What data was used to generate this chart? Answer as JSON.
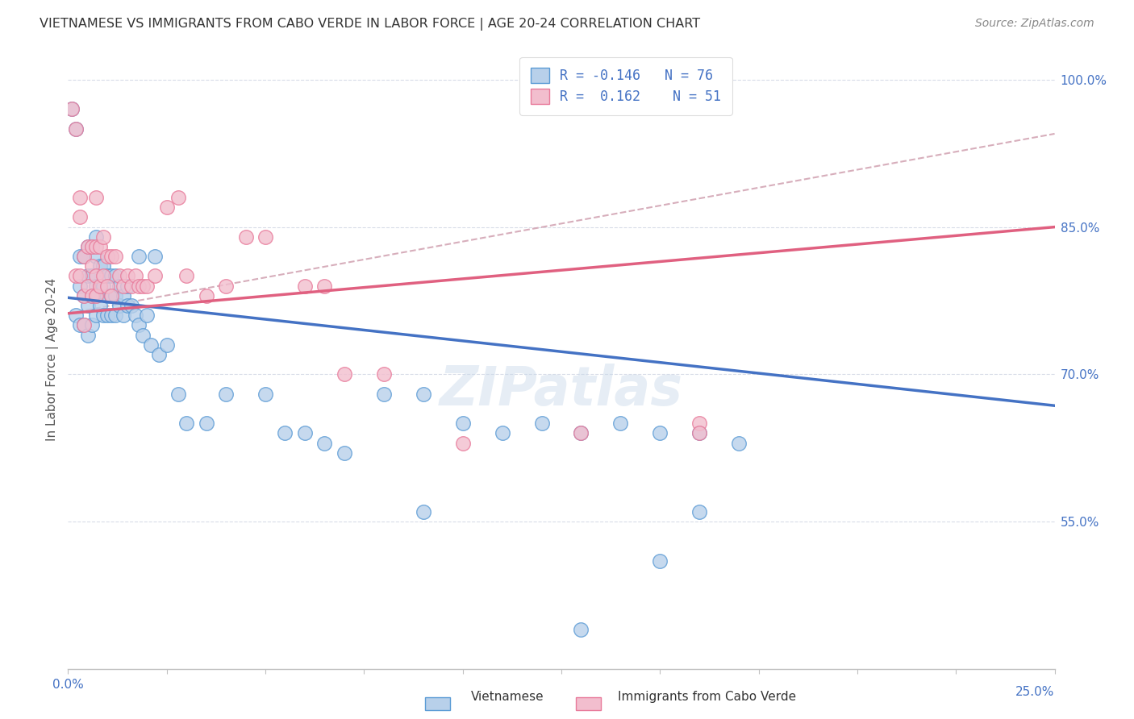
{
  "title": "VIETNAMESE VS IMMIGRANTS FROM CABO VERDE IN LABOR FORCE | AGE 20-24 CORRELATION CHART",
  "source": "Source: ZipAtlas.com",
  "ylabel": "In Labor Force | Age 20-24",
  "x_min": 0.0,
  "x_max": 0.25,
  "y_min": 0.4,
  "y_max": 1.03,
  "y_ticks": [
    0.55,
    0.7,
    0.85,
    1.0
  ],
  "y_tick_labels": [
    "55.0%",
    "70.0%",
    "85.0%",
    "100.0%"
  ],
  "legend_r_blue": "-0.146",
  "legend_n_blue": "76",
  "legend_r_pink": "0.162",
  "legend_n_pink": "51",
  "blue_color": "#b8d0ea",
  "pink_color": "#f2bece",
  "blue_edge_color": "#5b9bd5",
  "pink_edge_color": "#e87a9a",
  "blue_line_color": "#4472c4",
  "pink_line_color": "#e06080",
  "dashed_line_color": "#d0a0b0",
  "watermark": "ZIPatlas",
  "blue_line_x0": 0.0,
  "blue_line_y0": 0.778,
  "blue_line_x1": 0.25,
  "blue_line_y1": 0.668,
  "pink_line_x0": 0.0,
  "pink_line_y0": 0.762,
  "pink_line_x1": 0.25,
  "pink_line_y1": 0.85,
  "dash_line_x0": 0.0,
  "dash_line_y0": 0.762,
  "dash_line_x1": 0.25,
  "dash_line_y1": 0.945,
  "blue_scatter_x": [
    0.001,
    0.002,
    0.002,
    0.003,
    0.003,
    0.003,
    0.004,
    0.004,
    0.004,
    0.005,
    0.005,
    0.005,
    0.005,
    0.006,
    0.006,
    0.006,
    0.006,
    0.007,
    0.007,
    0.007,
    0.007,
    0.007,
    0.008,
    0.008,
    0.008,
    0.009,
    0.009,
    0.009,
    0.01,
    0.01,
    0.01,
    0.011,
    0.011,
    0.011,
    0.012,
    0.012,
    0.012,
    0.013,
    0.013,
    0.014,
    0.014,
    0.015,
    0.015,
    0.016,
    0.017,
    0.018,
    0.019,
    0.02,
    0.021,
    0.023,
    0.025,
    0.028,
    0.03,
    0.035,
    0.04,
    0.05,
    0.055,
    0.06,
    0.065,
    0.07,
    0.08,
    0.09,
    0.1,
    0.11,
    0.12,
    0.13,
    0.14,
    0.15,
    0.16,
    0.17,
    0.018,
    0.022,
    0.09,
    0.16,
    0.15,
    0.13
  ],
  "blue_scatter_y": [
    0.97,
    0.95,
    0.76,
    0.82,
    0.79,
    0.75,
    0.82,
    0.78,
    0.75,
    0.83,
    0.8,
    0.77,
    0.74,
    0.83,
    0.8,
    0.78,
    0.75,
    0.84,
    0.82,
    0.79,
    0.78,
    0.76,
    0.81,
    0.79,
    0.77,
    0.81,
    0.79,
    0.76,
    0.8,
    0.78,
    0.76,
    0.8,
    0.78,
    0.76,
    0.8,
    0.78,
    0.76,
    0.79,
    0.77,
    0.78,
    0.76,
    0.79,
    0.77,
    0.77,
    0.76,
    0.75,
    0.74,
    0.76,
    0.73,
    0.72,
    0.73,
    0.68,
    0.65,
    0.65,
    0.68,
    0.68,
    0.64,
    0.64,
    0.63,
    0.62,
    0.68,
    0.68,
    0.65,
    0.64,
    0.65,
    0.64,
    0.65,
    0.64,
    0.64,
    0.63,
    0.82,
    0.82,
    0.56,
    0.56,
    0.51,
    0.44
  ],
  "pink_scatter_x": [
    0.001,
    0.002,
    0.002,
    0.003,
    0.003,
    0.004,
    0.004,
    0.004,
    0.005,
    0.005,
    0.006,
    0.006,
    0.006,
    0.007,
    0.007,
    0.007,
    0.008,
    0.008,
    0.009,
    0.009,
    0.01,
    0.01,
    0.011,
    0.011,
    0.012,
    0.013,
    0.014,
    0.015,
    0.016,
    0.017,
    0.018,
    0.019,
    0.02,
    0.022,
    0.025,
    0.028,
    0.03,
    0.035,
    0.04,
    0.045,
    0.05,
    0.06,
    0.065,
    0.07,
    0.08,
    0.1,
    0.13,
    0.16,
    0.003,
    0.007,
    0.16
  ],
  "pink_scatter_y": [
    0.97,
    0.95,
    0.8,
    0.86,
    0.8,
    0.82,
    0.78,
    0.75,
    0.83,
    0.79,
    0.83,
    0.81,
    0.78,
    0.83,
    0.8,
    0.78,
    0.83,
    0.79,
    0.84,
    0.8,
    0.82,
    0.79,
    0.82,
    0.78,
    0.82,
    0.8,
    0.79,
    0.8,
    0.79,
    0.8,
    0.79,
    0.79,
    0.79,
    0.8,
    0.87,
    0.88,
    0.8,
    0.78,
    0.79,
    0.84,
    0.84,
    0.79,
    0.79,
    0.7,
    0.7,
    0.63,
    0.64,
    0.65,
    0.88,
    0.88,
    0.64
  ]
}
